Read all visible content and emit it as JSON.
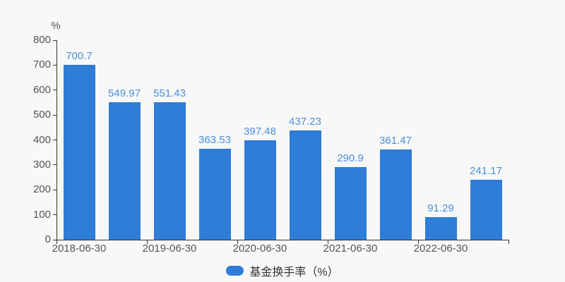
{
  "background": "#f8f8f8",
  "chart_data": {
    "type": "bar",
    "title": "",
    "unit_label": "%",
    "values": [
      700.7,
      549.97,
      551.43,
      363.53,
      397.48,
      437.23,
      290.9,
      361.47,
      91.29,
      241.17
    ],
    "value_labels": [
      "700.7",
      "549.97",
      "551.43",
      "363.53",
      "397.48",
      "437.23",
      "290.9",
      "361.47",
      "91.29",
      "241.17"
    ],
    "x_tick_labels": [
      "2018-06-30",
      "2019-06-30",
      "2020-06-30",
      "2021-06-30",
      "2022-06-30"
    ],
    "x_label_interval": 2,
    "y_ticks": [
      0,
      100,
      200,
      300,
      400,
      500,
      600,
      700,
      800
    ],
    "ylim": [
      0,
      800
    ],
    "grid": false,
    "legend": {
      "label": "基金换手率（%）",
      "position": "bottom-center"
    },
    "colors": {
      "bar": "#2e7dd9",
      "value_label": "#4a90e2",
      "axis_line": "#333333",
      "axis_text": "#555555",
      "legend_text": "#333333",
      "background": "#f8f8f8"
    }
  }
}
